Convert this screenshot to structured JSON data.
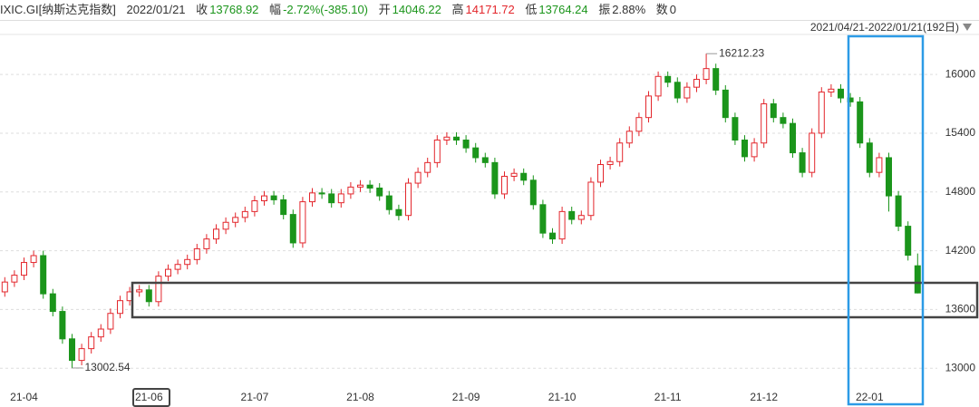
{
  "chart_data": {
    "type": "candlestick",
    "header": {
      "code": "IXIC.GI[纳斯达克指数]",
      "date": "2022/01/21",
      "close_label": "收",
      "change_label": "幅",
      "change": "-2.72%(-385.10)",
      "open_label": "开",
      "high_label": "高",
      "low_label": "低",
      "amplitude_label": "振",
      "amplitude": "2.88%",
      "count_label": "数",
      "count": 0,
      "range": "2021/04/21-2022/01/21(192日)"
    },
    "categories": [
      null,
      null,
      "21-04",
      null,
      null,
      null,
      null,
      null,
      null,
      null,
      null,
      null,
      null,
      null,
      null,
      "21-06",
      null,
      null,
      null,
      null,
      null,
      null,
      null,
      null,
      null,
      null,
      "21-07",
      null,
      null,
      null,
      null,
      null,
      null,
      null,
      null,
      null,
      null,
      "21-08",
      null,
      null,
      null,
      null,
      null,
      null,
      null,
      null,
      null,
      null,
      "21-09",
      null,
      null,
      null,
      null,
      null,
      null,
      null,
      null,
      null,
      "21-10",
      null,
      null,
      null,
      null,
      null,
      null,
      null,
      null,
      null,
      null,
      "21-11",
      null,
      null,
      null,
      null,
      null,
      null,
      null,
      null,
      null,
      "21-12",
      null,
      null,
      null,
      null,
      null,
      null,
      null,
      null,
      null,
      null,
      "22-01",
      null,
      null,
      null,
      null,
      null
    ],
    "open": [
      13780,
      13880,
      13950,
      14080,
      14150,
      13760,
      13580,
      13300,
      13080,
      13200,
      13320,
      13400,
      13560,
      13690,
      13780,
      13800,
      13680,
      13940,
      14010,
      14060,
      14110,
      14220,
      14320,
      14420,
      14490,
      14540,
      14600,
      14710,
      14760,
      14720,
      14570,
      14280,
      14700,
      14790,
      14780,
      14690,
      14780,
      14850,
      14870,
      14840,
      14760,
      14620,
      14560,
      14890,
      15000,
      15100,
      15330,
      15360,
      15330,
      15250,
      15150,
      15100,
      14780,
      14960,
      14990,
      14920,
      14670,
      14380,
      14320,
      14600,
      14520,
      14560,
      14900,
      15080,
      15110,
      15300,
      15420,
      15560,
      15780,
      15980,
      15920,
      15760,
      15870,
      15950,
      16060,
      15840,
      15560,
      15330,
      15160,
      15300,
      15700,
      15560,
      15500,
      15200,
      15000,
      15400,
      15820,
      15850,
      15760,
      15720,
      15300,
      15000,
      15150,
      14760,
      14450,
      14046.22
    ],
    "high": [
      13930,
      14000,
      14130,
      14200,
      14200,
      13810,
      13630,
      13350,
      13250,
      13370,
      13450,
      13610,
      13740,
      13830,
      13850,
      13850,
      13990,
      14060,
      14110,
      14160,
      14270,
      14370,
      14470,
      14540,
      14590,
      14650,
      14760,
      14810,
      14810,
      14770,
      14620,
      14750,
      14840,
      14840,
      14830,
      14830,
      14900,
      14920,
      14920,
      14890,
      14810,
      14670,
      14940,
      15050,
      15150,
      15380,
      15410,
      15410,
      15380,
      15300,
      15200,
      15150,
      15010,
      15040,
      15040,
      14970,
      14720,
      14430,
      14650,
      14650,
      14610,
      14950,
      15130,
      15160,
      15350,
      15470,
      15610,
      15830,
      16030,
      16030,
      15970,
      15920,
      16000,
      16212.23,
      16110,
      15890,
      15610,
      15380,
      15350,
      15750,
      15750,
      15610,
      15550,
      15250,
      15450,
      15870,
      15900,
      15900,
      15810,
      15770,
      15350,
      15200,
      15200,
      14810,
      14500,
      14171.72
    ],
    "low": [
      13730,
      13830,
      13900,
      14030,
      13710,
      13530,
      13250,
      13002.54,
      13030,
      13150,
      13270,
      13350,
      13510,
      13640,
      13730,
      13630,
      13630,
      13890,
      13960,
      14010,
      14060,
      14170,
      14270,
      14370,
      14440,
      14490,
      14550,
      14660,
      14670,
      14520,
      14230,
      14230,
      14650,
      14730,
      14640,
      14640,
      14730,
      14800,
      14790,
      14710,
      14570,
      14510,
      14510,
      14840,
      14950,
      15050,
      15280,
      15280,
      15200,
      15100,
      15050,
      14730,
      14730,
      14910,
      14870,
      14620,
      14330,
      14270,
      14270,
      14470,
      14470,
      14510,
      14850,
      15030,
      15060,
      15250,
      15370,
      15510,
      15730,
      15870,
      15710,
      15710,
      15820,
      15900,
      15790,
      15510,
      15280,
      15110,
      15110,
      15250,
      15510,
      15450,
      15150,
      14950,
      14950,
      15350,
      15770,
      15710,
      15670,
      15250,
      14950,
      14950,
      14600,
      14400,
      14100,
      13764.24
    ],
    "close": [
      13880,
      13950,
      14080,
      14150,
      13760,
      13580,
      13300,
      13080,
      13200,
      13320,
      13400,
      13560,
      13690,
      13780,
      13800,
      13680,
      13940,
      14010,
      14060,
      14110,
      14220,
      14320,
      14420,
      14490,
      14540,
      14600,
      14710,
      14760,
      14720,
      14570,
      14280,
      14700,
      14790,
      14780,
      14690,
      14780,
      14850,
      14870,
      14840,
      14760,
      14620,
      14560,
      14890,
      15000,
      15100,
      15330,
      15360,
      15330,
      15250,
      15150,
      15100,
      14780,
      14960,
      14990,
      14920,
      14670,
      14380,
      14320,
      14600,
      14520,
      14560,
      14900,
      15080,
      15110,
      15300,
      15420,
      15560,
      15780,
      15980,
      15920,
      15760,
      15870,
      15950,
      16060,
      15840,
      15560,
      15330,
      15160,
      15300,
      15700,
      15560,
      15500,
      15200,
      15000,
      15400,
      15820,
      15850,
      15760,
      15720,
      15300,
      15000,
      15150,
      14760,
      14450,
      14154.02,
      13768.92
    ],
    "up_color": "#e3262c",
    "down_color": "#1b951b",
    "down_text_color": "#1b951b",
    "ylim": [
      12780,
      16390
    ],
    "yticks": [
      13000,
      13600,
      14200,
      14800,
      15400,
      16000
    ],
    "grid": true,
    "max_index": 73,
    "min_index": 7
  }
}
